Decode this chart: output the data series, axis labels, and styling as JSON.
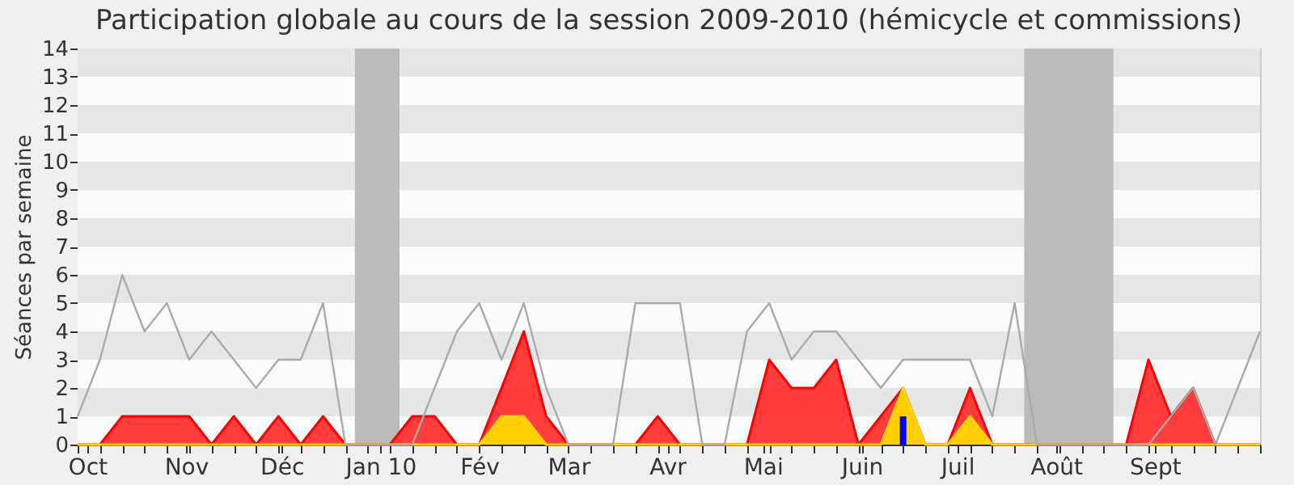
{
  "chart_data": {
    "type": "area",
    "title": "Participation globale au cours de la session 2009-2010 (hémicycle et commissions)",
    "ylabel": "Séances par semaine",
    "x": [
      "2009-09-28",
      "2009-10-05",
      "2009-10-12",
      "2009-10-19",
      "2009-10-26",
      "2009-11-02",
      "2009-11-09",
      "2009-11-16",
      "2009-11-23",
      "2009-11-30",
      "2009-12-07",
      "2009-12-14",
      "2009-12-21",
      "2009-12-28",
      "2010-01-04",
      "2010-01-11",
      "2010-01-18",
      "2010-01-25",
      "2010-02-01",
      "2010-02-08",
      "2010-02-15",
      "2010-02-22",
      "2010-03-01",
      "2010-03-08",
      "2010-03-15",
      "2010-03-22",
      "2010-03-29",
      "2010-04-05",
      "2010-04-12",
      "2010-04-19",
      "2010-04-26",
      "2010-05-03",
      "2010-05-10",
      "2010-05-17",
      "2010-05-24",
      "2010-05-31",
      "2010-06-07",
      "2010-06-14",
      "2010-06-21",
      "2010-06-28",
      "2010-07-05",
      "2010-07-12",
      "2010-07-19",
      "2010-07-26",
      "2010-08-02",
      "2010-08-09",
      "2010-08-16",
      "2010-08-23",
      "2010-08-30",
      "2010-09-06",
      "2010-09-13",
      "2010-09-20",
      "2010-09-27",
      "2010-10-04"
    ],
    "xlim": [
      "2009-09-28",
      "2010-10-04"
    ],
    "xticks": [
      {
        "value": "2009-10-01",
        "label": "Oct"
      },
      {
        "value": "2009-11-01",
        "label": "Nov"
      },
      {
        "value": "2009-12-01",
        "label": "Déc"
      },
      {
        "value": "2010-01-01",
        "label": "Jan 10"
      },
      {
        "value": "2010-02-01",
        "label": "Fév"
      },
      {
        "value": "2010-03-01",
        "label": "Mar"
      },
      {
        "value": "2010-04-01",
        "label": "Avr"
      },
      {
        "value": "2010-05-01",
        "label": "Mai"
      },
      {
        "value": "2010-06-01",
        "label": "Juin"
      },
      {
        "value": "2010-07-01",
        "label": "Juil"
      },
      {
        "value": "2010-08-01",
        "label": "Août"
      },
      {
        "value": "2010-09-01",
        "label": "Sept"
      }
    ],
    "ylim": [
      0,
      14
    ],
    "yticks": [
      0,
      1,
      2,
      3,
      4,
      5,
      6,
      7,
      8,
      9,
      10,
      11,
      12,
      13,
      14
    ],
    "grid": "y",
    "marker": "none",
    "bands": [
      {
        "axis": "x",
        "from": "2009-12-24",
        "to": "2010-01-07",
        "color": "#bbbbbb"
      },
      {
        "axis": "x",
        "from": "2010-07-22",
        "to": "2010-08-19",
        "color": "#bbbbbb"
      }
    ],
    "series": [
      {
        "color": "#ff3333",
        "values": [
          0,
          0,
          1,
          1,
          1,
          1,
          0,
          1,
          0,
          1,
          0,
          1,
          0,
          0,
          0,
          1,
          1,
          0,
          0,
          2,
          4,
          1,
          0,
          0,
          0,
          0,
          1,
          0,
          0,
          0,
          0,
          3,
          2,
          2,
          3,
          0,
          1,
          2,
          0,
          0,
          2,
          0,
          0,
          0,
          0,
          0,
          0,
          0,
          3,
          1,
          2,
          0,
          0,
          0
        ]
      },
      {
        "color": "#ffd700",
        "values": [
          0,
          0,
          0,
          0,
          0,
          0,
          0,
          0,
          0,
          0,
          0,
          0,
          0,
          0,
          0,
          0,
          0,
          0,
          0,
          1,
          1,
          0,
          0,
          0,
          0,
          0,
          0,
          0,
          0,
          0,
          0,
          0,
          0,
          0,
          0,
          0,
          0,
          2,
          0,
          0,
          1,
          0,
          0,
          0,
          0,
          0,
          0,
          0,
          0,
          0,
          0,
          0,
          0,
          0
        ]
      },
      {
        "type": "bar",
        "color": "#0000ff",
        "values": [
          null,
          null,
          null,
          null,
          null,
          null,
          null,
          null,
          null,
          null,
          null,
          null,
          null,
          null,
          null,
          null,
          null,
          null,
          null,
          null,
          null,
          null,
          null,
          null,
          null,
          null,
          null,
          null,
          null,
          null,
          null,
          null,
          null,
          null,
          null,
          null,
          null,
          1,
          null,
          null,
          null,
          null,
          null,
          null,
          null,
          null,
          null,
          null,
          null,
          null,
          null,
          null,
          null,
          null
        ]
      },
      {
        "type": "line",
        "color": "#aaaaaa",
        "values": [
          1,
          3,
          6,
          4,
          5,
          3,
          4,
          3,
          2,
          3,
          3,
          5,
          0,
          0,
          0,
          0,
          2,
          4,
          5,
          3,
          5,
          2,
          0,
          0,
          0,
          5,
          5,
          5,
          0,
          0,
          4,
          5,
          3,
          4,
          4,
          3,
          2,
          3,
          3,
          3,
          3,
          1,
          5,
          0,
          0,
          0,
          0,
          0,
          0,
          1,
          2,
          0,
          2,
          4
        ]
      }
    ]
  }
}
